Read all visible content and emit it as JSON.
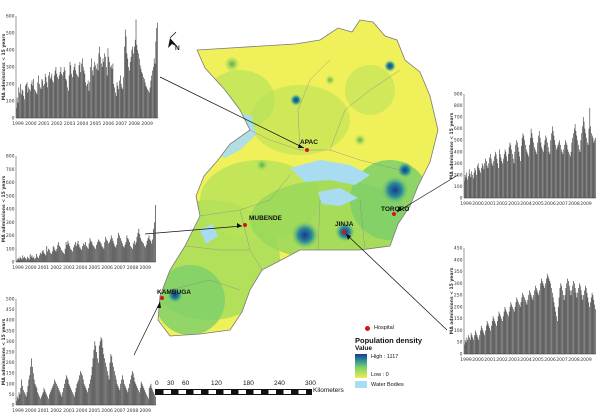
{
  "map": {
    "districts": [
      "APAC",
      "MUBENDE",
      "JINJA",
      "TORORO",
      "KAMBUGA"
    ],
    "north_label": "N",
    "legend": {
      "hospital_label": "Hospital",
      "title": "Population density",
      "value_label": "Value",
      "high_label": "High : 1117",
      "low_label": "Low : 0",
      "water_label": "Water Bodies",
      "colors": {
        "hospital": "#d4141d",
        "high": "#1a3a8a",
        "mid": "#7ccf6a",
        "low": "#ecef52",
        "water": "#a8dcf0"
      }
    },
    "scale_bar": {
      "ticks": [
        "0",
        "30",
        "60",
        "120",
        "180",
        "240",
        "300"
      ],
      "unit": "Kilometers"
    }
  },
  "chart_data": [
    {
      "type": "bar",
      "site": "APAC",
      "ylabel": "MA admissions < 15 years",
      "ylim": [
        0,
        600
      ],
      "yticks": [
        "0",
        "100",
        "200",
        "300",
        "400",
        "500",
        "600"
      ],
      "xtick_labels": [
        "1999",
        "2000",
        "2001",
        "2002",
        "2003",
        "2004",
        "2005",
        "2006",
        "2007",
        "2008",
        "2009"
      ],
      "values": [
        60,
        120,
        90,
        180,
        150,
        200,
        140,
        170,
        160,
        130,
        110,
        190,
        200,
        210,
        150,
        180,
        170,
        160,
        200,
        220,
        190,
        230,
        170,
        160,
        150,
        140,
        210,
        250,
        200,
        180,
        170,
        230,
        220,
        190,
        200,
        260,
        240,
        210,
        180,
        250,
        270,
        230,
        240,
        260,
        220,
        210,
        250,
        280,
        300,
        260,
        240,
        230,
        250,
        270,
        300,
        260,
        250,
        270,
        300,
        280,
        230,
        220,
        180,
        160,
        250,
        330,
        310,
        260,
        240,
        280,
        300,
        320,
        280,
        260,
        250,
        240,
        310,
        330,
        270,
        320,
        350,
        300,
        280,
        260,
        210,
        190,
        200,
        220,
        160,
        210,
        300,
        350,
        280,
        250,
        300,
        330,
        310,
        290,
        320,
        280,
        380,
        420,
        360,
        320,
        300,
        350,
        330,
        380,
        360,
        300,
        250,
        410,
        360,
        330,
        300,
        310,
        290,
        320,
        200,
        180,
        150,
        130,
        210,
        190,
        170,
        220,
        250,
        200,
        180,
        170,
        240,
        420,
        520,
        480,
        380,
        350,
        300,
        280,
        330,
        360,
        400,
        420,
        380,
        420,
        460,
        580,
        430,
        400,
        380,
        350,
        310,
        290,
        270,
        260,
        240,
        230,
        210,
        190,
        180,
        170,
        160,
        150,
        180,
        220,
        250,
        280,
        300,
        350,
        320,
        450,
        530,
        560
      ]
    },
    {
      "type": "bar",
      "site": "MUBENDE",
      "ylabel": "MA admissions < 15 years",
      "ylim": [
        0,
        800
      ],
      "yticks": [
        "0",
        "100",
        "200",
        "300",
        "400",
        "500",
        "600",
        "700",
        "800"
      ],
      "xtick_labels": [
        "1999",
        "2000",
        "2001",
        "2002",
        "2003",
        "2004",
        "2005",
        "2006",
        "2007",
        "2008",
        "2009"
      ],
      "values": [
        10,
        20,
        30,
        20,
        40,
        30,
        20,
        50,
        30,
        40,
        30,
        20,
        40,
        30,
        20,
        60,
        40,
        50,
        30,
        40,
        20,
        30,
        60,
        40,
        30,
        50,
        70,
        60,
        80,
        90,
        70,
        60,
        50,
        120,
        80,
        100,
        90,
        70,
        60,
        80,
        120,
        110,
        90,
        80,
        100,
        130,
        150,
        120,
        110,
        90,
        80,
        70,
        60,
        100,
        150,
        130,
        160,
        140,
        120,
        100,
        90,
        80,
        110,
        130,
        150,
        120,
        140,
        160,
        130,
        110,
        100,
        90,
        120,
        140,
        130,
        150,
        120,
        110,
        100,
        140,
        180,
        160,
        150,
        130,
        120,
        110,
        100,
        130,
        150,
        170,
        160,
        150,
        140,
        120,
        110,
        100,
        150,
        190,
        170,
        160,
        140,
        150,
        170,
        200,
        180,
        160,
        140,
        120,
        110,
        130,
        180,
        220,
        200,
        180,
        160,
        140,
        120,
        110,
        130,
        150,
        200,
        180,
        170,
        150,
        120,
        110,
        100,
        140,
        160,
        130,
        150,
        190,
        220,
        250,
        210,
        180,
        160,
        150,
        140,
        120,
        110,
        130,
        160,
        180,
        200,
        170,
        160,
        140,
        170,
        250,
        300,
        430
      ]
    },
    {
      "type": "bar",
      "site": "KAMBUGA",
      "ylabel": "MA admissions < 15 years",
      "ylim": [
        0,
        500
      ],
      "yticks": [
        "0",
        "50",
        "100",
        "150",
        "200",
        "250",
        "300",
        "350",
        "400",
        "450",
        "500"
      ],
      "xtick_labels": [
        "1999",
        "2000",
        "2001",
        "2002",
        "2003",
        "2004",
        "2005",
        "2006",
        "2007",
        "2008",
        "2009"
      ],
      "values": [
        20,
        40,
        30,
        60,
        50,
        80,
        120,
        90,
        70,
        60,
        50,
        40,
        60,
        90,
        120,
        140,
        180,
        220,
        180,
        150,
        120,
        100,
        90,
        80,
        60,
        50,
        40,
        30,
        40,
        50,
        60,
        80,
        70,
        60,
        50,
        40,
        30,
        50,
        60,
        70,
        80,
        90,
        100,
        120,
        110,
        100,
        90,
        80,
        70,
        60,
        50,
        40,
        60,
        80,
        100,
        120,
        140,
        130,
        120,
        100,
        90,
        80,
        70,
        60,
        50,
        40,
        60,
        80,
        100,
        110,
        120,
        140,
        160,
        150,
        140,
        120,
        100,
        90,
        80,
        70,
        60,
        80,
        100,
        120,
        140,
        180,
        220,
        260,
        300,
        280,
        250,
        220,
        200,
        280,
        300,
        320,
        310,
        270,
        240,
        220,
        200,
        180,
        160,
        140,
        120,
        200,
        240,
        230,
        200,
        180,
        160,
        140,
        120,
        100,
        90,
        80,
        70,
        100,
        120,
        140,
        120,
        100,
        90,
        80,
        70,
        60,
        80,
        100,
        120,
        140,
        160,
        150,
        130,
        110,
        100,
        90,
        80,
        70,
        60,
        80,
        110,
        100,
        90,
        80,
        70,
        60,
        50,
        40,
        30,
        80,
        90,
        100,
        80,
        70,
        60,
        50,
        40
      ]
    },
    {
      "type": "bar",
      "site": "TORORO",
      "ylabel": "MA admissions < 15 years",
      "ylim": [
        0,
        900
      ],
      "yticks": [
        "0",
        "100",
        "200",
        "300",
        "400",
        "500",
        "600",
        "700",
        "800",
        "900"
      ],
      "xtick_labels": [
        "1999",
        "2000",
        "2001",
        "2002",
        "2003",
        "2004",
        "2005",
        "2006",
        "2007",
        "2008",
        "2009"
      ],
      "values": [
        150,
        200,
        180,
        220,
        160,
        190,
        250,
        210,
        180,
        230,
        200,
        170,
        220,
        260,
        240,
        200,
        280,
        300,
        260,
        240,
        220,
        260,
        300,
        280,
        250,
        300,
        340,
        320,
        280,
        260,
        300,
        350,
        380,
        340,
        300,
        280,
        320,
        360,
        400,
        380,
        340,
        300,
        260,
        420,
        380,
        350,
        320,
        300,
        340,
        380,
        420,
        400,
        360,
        320,
        380,
        440,
        480,
        460,
        420,
        380,
        340,
        300,
        400,
        460,
        500,
        480,
        440,
        400,
        360,
        320,
        450,
        520,
        560,
        540,
        500,
        460,
        420,
        400,
        380,
        360,
        460,
        520,
        600,
        560,
        520,
        480,
        440,
        420,
        400,
        380,
        480,
        540,
        580,
        520,
        480,
        440,
        420,
        400,
        460,
        500,
        540,
        520,
        480,
        440,
        400,
        380,
        500,
        560,
        620,
        580,
        540,
        500,
        460,
        420,
        440,
        460,
        480,
        500,
        460,
        420,
        400,
        380,
        420,
        460,
        500,
        480,
        460,
        420,
        400,
        380,
        360,
        400,
        480,
        520,
        560,
        600,
        640,
        580,
        540,
        500,
        460,
        420,
        400,
        500,
        560,
        620,
        700,
        660,
        600,
        560,
        520,
        480,
        460,
        600,
        780,
        620,
        560,
        540,
        520,
        480,
        500,
        520
      ]
    },
    {
      "type": "bar",
      "site": "JINJA",
      "ylabel": "MA admissions < 15 years",
      "ylim": [
        0,
        450
      ],
      "yticks": [
        "0",
        "50",
        "100",
        "150",
        "200",
        "250",
        "300",
        "350",
        "400",
        "450"
      ],
      "xtick_labels": [
        "1999",
        "2000",
        "2001",
        "2002",
        "2003",
        "2004",
        "2005",
        "2006",
        "2007",
        "2008",
        "2009"
      ],
      "values": [
        40,
        60,
        50,
        70,
        60,
        80,
        70,
        60,
        90,
        80,
        70,
        60,
        80,
        100,
        90,
        80,
        70,
        60,
        80,
        100,
        120,
        110,
        100,
        90,
        80,
        100,
        120,
        140,
        130,
        120,
        110,
        100,
        120,
        140,
        160,
        150,
        140,
        130,
        120,
        140,
        160,
        180,
        170,
        160,
        150,
        140,
        160,
        180,
        200,
        190,
        180,
        170,
        160,
        180,
        200,
        220,
        210,
        200,
        190,
        180,
        200,
        220,
        240,
        230,
        220,
        210,
        200,
        220,
        240,
        260,
        250,
        240,
        230,
        220,
        210,
        230,
        250,
        270,
        260,
        250,
        240,
        230,
        250,
        270,
        290,
        280,
        270,
        260,
        250,
        270,
        300,
        320,
        310,
        300,
        290,
        280,
        300,
        320,
        340,
        330,
        320,
        310,
        300,
        280,
        260,
        240,
        220,
        200,
        180,
        160,
        140,
        200,
        240,
        280,
        300,
        290,
        270,
        250,
        230,
        250,
        280,
        300,
        320,
        310,
        290,
        270,
        250,
        270,
        290,
        310,
        300,
        280,
        260,
        240,
        260,
        280,
        300,
        290,
        270,
        250,
        230,
        250,
        270,
        290,
        280,
        260,
        240,
        220,
        200,
        220,
        240,
        260,
        250,
        230,
        210,
        190
      ]
    }
  ]
}
